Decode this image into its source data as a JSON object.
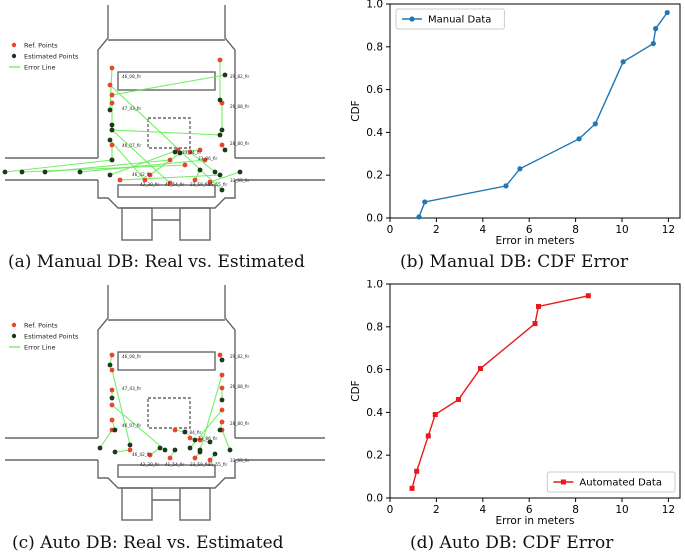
{
  "captions": {
    "a": "(a) Manual DB: Real vs. Estimated",
    "b": "(b) Manual DB: CDF Error",
    "c": "(c) Auto DB: Real vs. Estimated",
    "d": "(d) Auto DB: CDF Error"
  },
  "floorplan_legend": {
    "ref": "Ref. Points",
    "est": "Estimated Points",
    "err": "Error Line"
  },
  "colors": {
    "ref": "#e8462b",
    "est": "#1a3a1a",
    "err": "#66ee55",
    "walls": "#666666",
    "manual": "#1f77b4",
    "auto": "#e8191a"
  },
  "plan_labels_a": [
    "46_08_fir",
    "29_82_fir",
    "47_43_fir",
    "26_88_fir",
    "46_07_fir",
    "28_80_fir",
    "33_84_fir",
    "33_86_fir",
    "46_42_fir",
    "33_55_fir",
    "42_30_fir",
    "41_54_fir",
    "23_50_fir",
    "31_55_fir"
  ],
  "plan_labels_c": [
    "46_08_fir",
    "29_82_fir",
    "47_43_fir",
    "26_88_fir",
    "46_07_fir",
    "28_80_fir",
    "33_84_fir",
    "33_86_fir",
    "46_42_fir",
    "33_55_fir",
    "42_30_fir",
    "41_54_fir",
    "23_50_fir",
    "31_55_fir"
  ],
  "chart_data": [
    {
      "type": "line",
      "title": "",
      "xlabel": "Error in meters",
      "ylabel": "CDF",
      "xlim": [
        0,
        12.5
      ],
      "ylim": [
        0,
        1.0
      ],
      "xticks": [
        "0",
        "2",
        "4",
        "6",
        "8",
        "10",
        "12"
      ],
      "yticks": [
        "0.0",
        "0.2",
        "0.4",
        "0.6",
        "0.8",
        "1.0"
      ],
      "series": [
        {
          "name": "Manual Data",
          "marker": "circle",
          "x": [
            1.25,
            1.5,
            5.0,
            5.6,
            8.15,
            8.85,
            10.05,
            11.35,
            11.45,
            11.95
          ],
          "y": [
            0.005,
            0.075,
            0.15,
            0.23,
            0.37,
            0.44,
            0.73,
            0.815,
            0.885,
            0.96
          ]
        }
      ],
      "legend": "top-left"
    },
    {
      "type": "line",
      "title": "",
      "xlabel": "Error in meters",
      "ylabel": "CDF",
      "xlim": [
        0,
        12.5
      ],
      "ylim": [
        0,
        1.0
      ],
      "xticks": [
        "0",
        "2",
        "4",
        "6",
        "8",
        "10",
        "12"
      ],
      "yticks": [
        "0.0",
        "0.2",
        "0.4",
        "0.6",
        "0.8",
        "1.0"
      ],
      "series": [
        {
          "name": "Automated Data",
          "marker": "square",
          "x": [
            0.95,
            1.15,
            1.65,
            1.95,
            2.95,
            3.9,
            6.25,
            6.4,
            8.55
          ],
          "y": [
            0.045,
            0.125,
            0.29,
            0.39,
            0.46,
            0.605,
            0.815,
            0.895,
            0.945
          ]
        }
      ],
      "legend": "bottom-right"
    }
  ]
}
